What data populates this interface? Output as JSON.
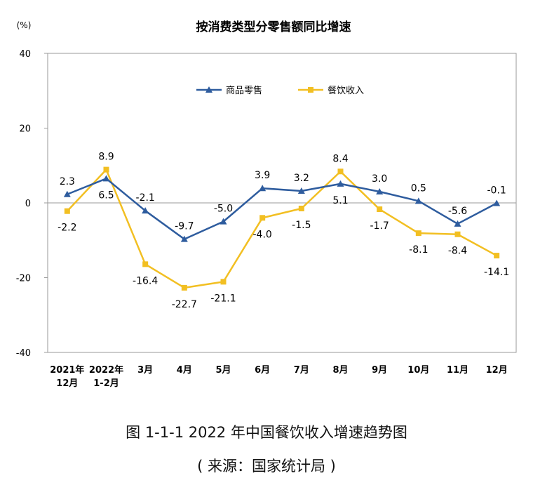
{
  "chart_data": {
    "type": "line",
    "title": "按消费类型分零售额同比增速",
    "ylabel": "(%)",
    "xlabel": "",
    "ylim": [
      -40,
      40
    ],
    "yticks": [
      40,
      20,
      0,
      -20,
      -40
    ],
    "grid": false,
    "legend_position": "top-center",
    "categories": [
      [
        "2021年",
        "12月"
      ],
      [
        "2022年",
        "1-2月"
      ],
      [
        "3月"
      ],
      [
        "4月"
      ],
      [
        "5月"
      ],
      [
        "6月"
      ],
      [
        "7月"
      ],
      [
        "8月"
      ],
      [
        "9月"
      ],
      [
        "10月"
      ],
      [
        "11月"
      ],
      [
        "12月"
      ]
    ],
    "series": [
      {
        "name": "商品零售",
        "color": "#2e5c9e",
        "marker": "triangle",
        "values": [
          2.3,
          6.5,
          -2.1,
          -9.7,
          -5.0,
          3.9,
          3.2,
          5.1,
          3.0,
          0.5,
          -5.6,
          -0.1
        ],
        "labels": [
          "2.3",
          "6.5",
          "-2.1",
          "-9.7",
          "-5.0",
          "3.9",
          "3.2",
          "5.1",
          "3.0",
          "0.5",
          "-5.6",
          "-0.1"
        ]
      },
      {
        "name": "餐饮收入",
        "color": "#f2bf22",
        "marker": "square",
        "values": [
          -2.2,
          8.9,
          -16.4,
          -22.7,
          -21.1,
          -4.0,
          -1.5,
          8.4,
          -1.7,
          -8.1,
          -8.4,
          -14.1
        ],
        "labels": [
          "-2.2",
          "8.9",
          "-16.4",
          "-22.7",
          "-21.1",
          "-4.0",
          "-1.5",
          "8.4",
          "-1.7",
          "-8.1",
          "-8.4",
          "-14.1"
        ]
      }
    ]
  },
  "caption": {
    "figure": "图 1-1-1  2022 年中国餐饮收入增速趋势图",
    "source": "( 来源：国家统计局 )"
  }
}
